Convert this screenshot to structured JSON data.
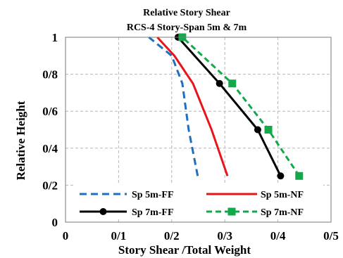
{
  "chart_data": {
    "type": "line",
    "title": "Relative Story Shear",
    "subtitle": "RCS-4 Story-Span 5m & 7m",
    "xlabel": "Story Shear /Total Weight",
    "ylabel": "Relative Height",
    "xlim": [
      0,
      0.5
    ],
    "ylim": [
      0,
      1
    ],
    "x_ticks": [
      0,
      0.1,
      0.2,
      0.3,
      0.4,
      0.5
    ],
    "x_tick_labels": [
      "0",
      "0/1",
      "0/2",
      "0/3",
      "0/4",
      "0/5"
    ],
    "y_ticks": [
      0,
      0.2,
      0.4,
      0.6,
      0.8,
      1
    ],
    "y_tick_labels": [
      "0",
      "0/2",
      "0/4",
      "0/6",
      "0/8",
      "1"
    ],
    "grid": true,
    "legend_position": "bottom-center",
    "series": [
      {
        "name": "Sp 5m-FF",
        "color": "#1f6fbf",
        "style": "dashed",
        "marker": "none",
        "x": [
          0.249,
          0.232,
          0.22,
          0.2,
          0.157
        ],
        "y": [
          0.25,
          0.5,
          0.75,
          0.9,
          1.0
        ]
      },
      {
        "name": "Sp 5m-NF",
        "color": "#e8141a",
        "style": "solid",
        "marker": "none",
        "x": [
          0.305,
          0.275,
          0.24,
          0.205,
          0.173
        ],
        "y": [
          0.25,
          0.5,
          0.75,
          0.9,
          1.0
        ]
      },
      {
        "name": "Sp 7m-FF",
        "color": "#000000",
        "style": "solid",
        "marker": "circle",
        "x": [
          0.405,
          0.362,
          0.29,
          0.212
        ],
        "y": [
          0.25,
          0.5,
          0.75,
          1.0
        ]
      },
      {
        "name": "Sp 7m-NF",
        "color": "#13a94a",
        "style": "dashed",
        "marker": "square",
        "x": [
          0.44,
          0.382,
          0.314,
          0.22
        ],
        "y": [
          0.25,
          0.5,
          0.75,
          1.0
        ]
      }
    ]
  }
}
